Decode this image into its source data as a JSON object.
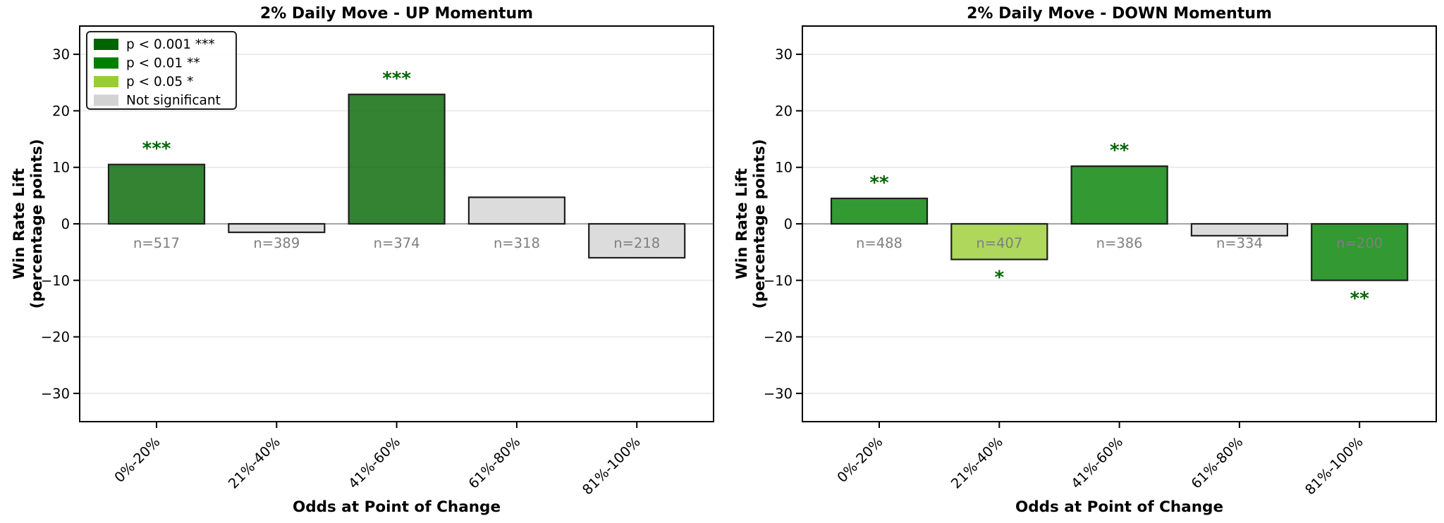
{
  "figure": {
    "background": "#ffffff",
    "grid_color": "#e7e7e7",
    "zero_line_color": "#8a8a8a",
    "spine_color": "#000000",
    "bar_edge_color": "#1f1f1f",
    "bar_alpha": 0.8,
    "n_label_color": "#7f7f7f",
    "star_color": "#006400"
  },
  "chart_data": [
    {
      "type": "bar",
      "title": "2% Daily Move - UP Momentum",
      "xlabel": "Odds at Point of Change",
      "ylabel": "Win Rate Lift\n(percentage points)",
      "categories": [
        "0%-20%",
        "21%-40%",
        "41%-60%",
        "61%-80%",
        "81%-100%"
      ],
      "values": [
        10.5,
        -1.5,
        22.9,
        4.7,
        -6.0
      ],
      "sample_sizes": [
        "n=517",
        "n=389",
        "n=374",
        "n=318",
        "n=218"
      ],
      "significance": [
        "***",
        "",
        "***",
        "",
        ""
      ],
      "bar_colors": [
        "#006400",
        "#d3d3d3",
        "#006400",
        "#d3d3d3",
        "#d3d3d3"
      ],
      "yticks": [
        -30,
        -20,
        -10,
        0,
        10,
        20,
        30
      ],
      "ytick_labels": [
        "−30",
        "−20",
        "−10",
        "0",
        "10",
        "20",
        "30"
      ],
      "ylim": [
        -35,
        35
      ],
      "grid": true,
      "show_legend": true,
      "legend": {
        "position": "upper left",
        "items": [
          {
            "label": "p < 0.001 ***",
            "color": "#006400"
          },
          {
            "label": "p < 0.01 **",
            "color": "#008000"
          },
          {
            "label": "p < 0.05 *",
            "color": "#9acd32"
          },
          {
            "label": "Not significant",
            "color": "#d3d3d3"
          }
        ]
      }
    },
    {
      "type": "bar",
      "title": "2% Daily Move - DOWN Momentum",
      "xlabel": "Odds at Point of Change",
      "ylabel": "Win Rate Lift\n(percentage points)",
      "categories": [
        "0%-20%",
        "21%-40%",
        "41%-60%",
        "61%-80%",
        "81%-100%"
      ],
      "values": [
        4.5,
        -6.3,
        10.2,
        -2.1,
        -10.0
      ],
      "sample_sizes": [
        "n=488",
        "n=407",
        "n=386",
        "n=334",
        "n=200"
      ],
      "significance": [
        "**",
        "*",
        "**",
        "",
        "**"
      ],
      "bar_colors": [
        "#008000",
        "#9acd32",
        "#008000",
        "#d3d3d3",
        "#008000"
      ],
      "yticks": [
        -30,
        -20,
        -10,
        0,
        10,
        20,
        30
      ],
      "ytick_labels": [
        "−30",
        "−20",
        "−10",
        "0",
        "10",
        "20",
        "30"
      ],
      "ylim": [
        -35,
        35
      ],
      "grid": true,
      "show_legend": false
    }
  ]
}
